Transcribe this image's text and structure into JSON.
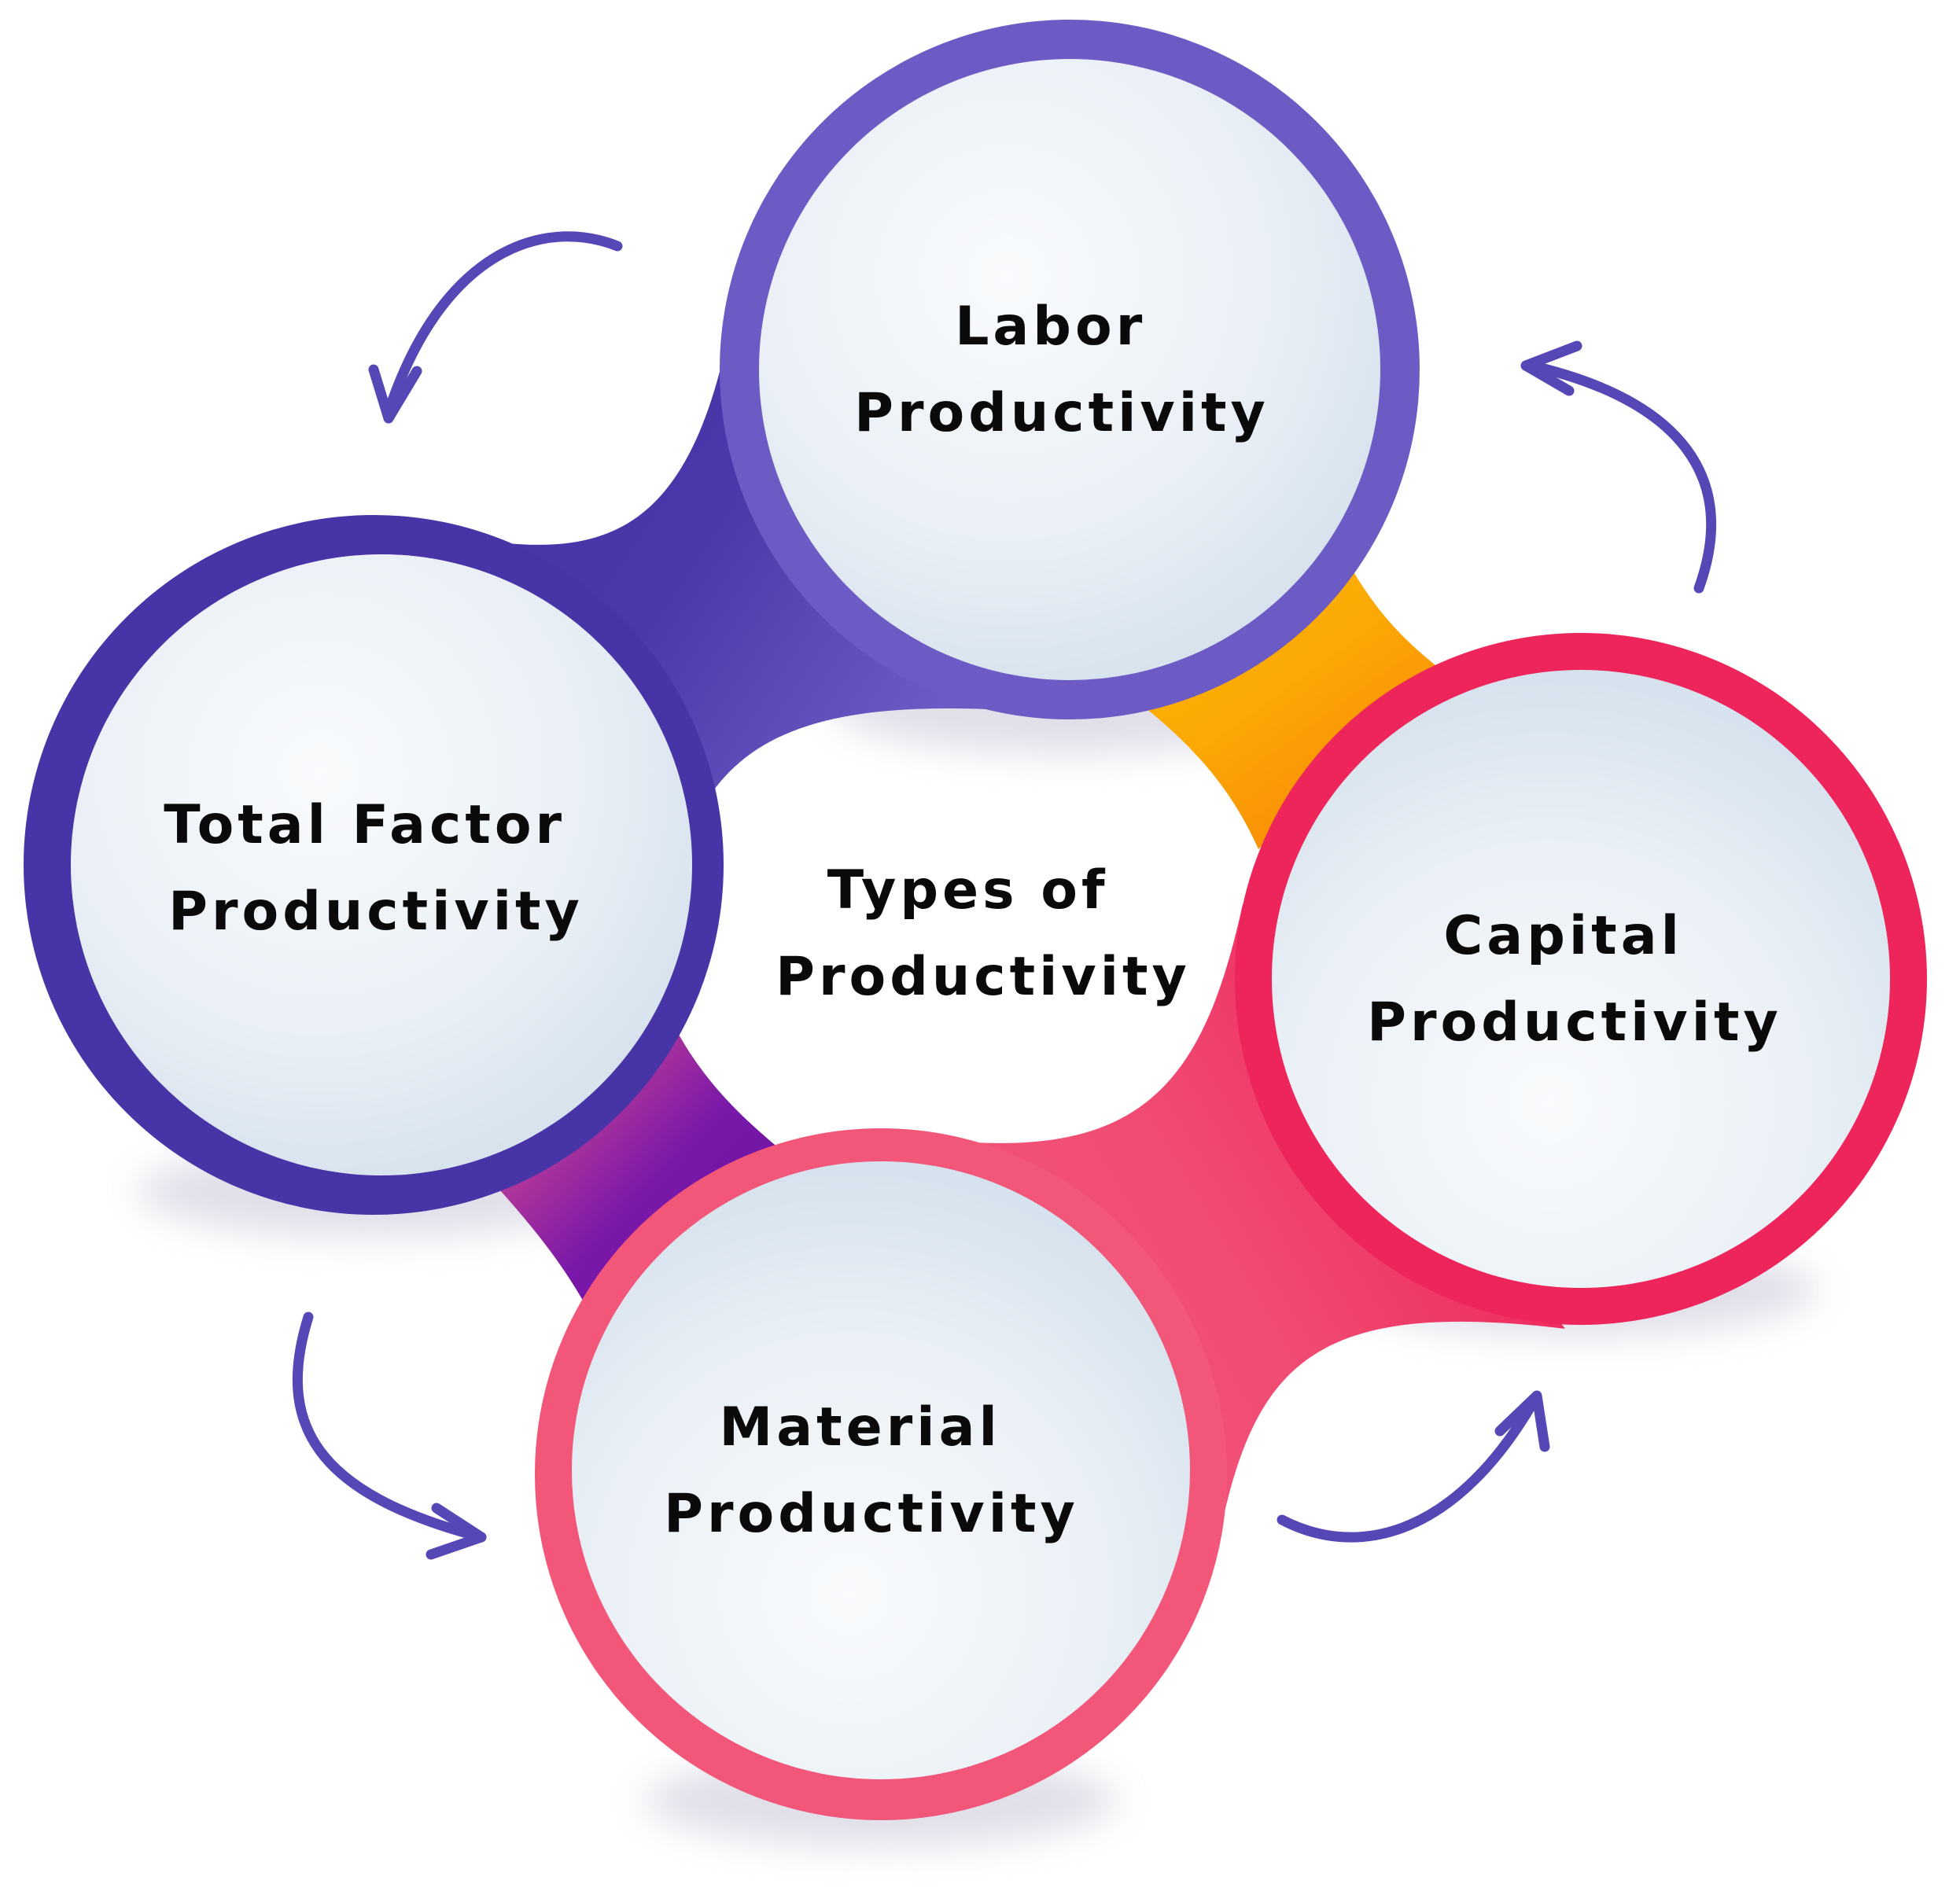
{
  "center": {
    "line1": "Types of",
    "line2": "Productivity"
  },
  "nodes": {
    "labor": {
      "line1": "Labor",
      "line2": "Productivity"
    },
    "capital": {
      "line1": "Capital",
      "line2": "Productivity"
    },
    "material": {
      "line1": "Material",
      "line2": "Productivity"
    },
    "total": {
      "line1": "Total Factor",
      "line2": "Productivity"
    }
  },
  "colors": {
    "labor": "#6c5bc4",
    "total": "#4735a8",
    "capital": "#ee255a",
    "material": "#f2577a",
    "bridge_gold": "#fdb704",
    "bridge_orange": "#f98a05",
    "bridge_violet": "#7a18a9",
    "bridge_pink": "#e8558a",
    "arrow": "#5647b6"
  },
  "icons": [
    "cycle-arrow-icon",
    "cycle-arrow-icon",
    "cycle-arrow-icon",
    "cycle-arrow-icon"
  ]
}
